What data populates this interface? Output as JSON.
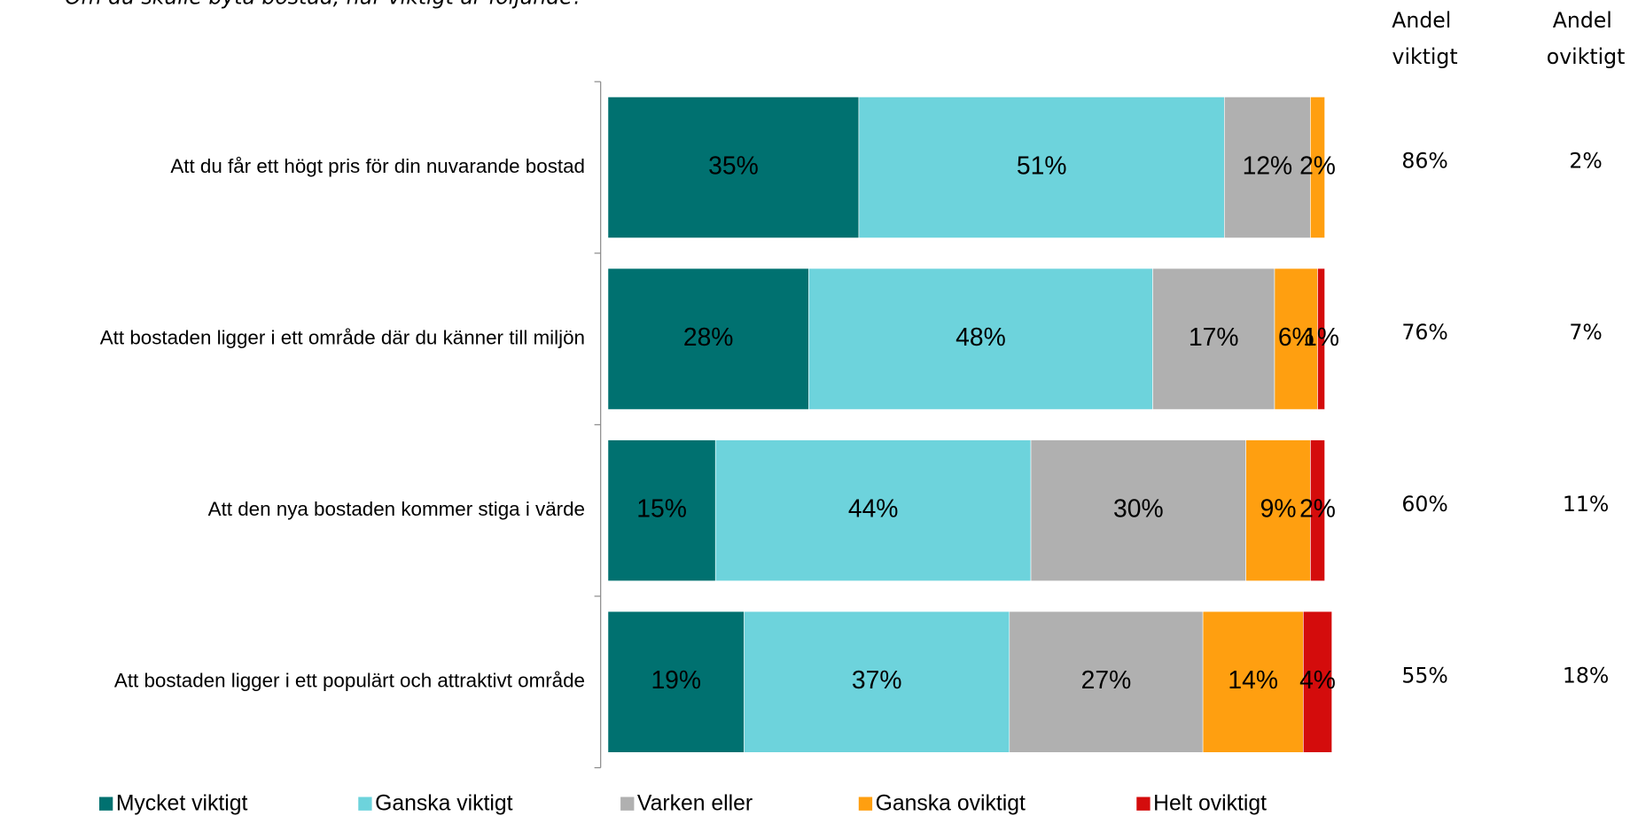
{
  "chart_data": {
    "type": "bar",
    "orientation": "horizontal",
    "stacked": true,
    "title": "Om du skulle byta bostad, hur viktigt är följande?",
    "categories": [
      "Att du får ett högt pris för din nuvarande bostad",
      "Att bostaden ligger i ett område där du känner till miljön",
      "Att den nya bostaden kommer stiga i värde",
      "Att bostaden ligger i ett populärt och attraktivt område"
    ],
    "series": [
      {
        "name": "Mycket viktigt",
        "color": "#007170",
        "values": [
          35,
          28,
          15,
          19
        ],
        "value_labels": [
          "35%",
          "28%",
          "15%",
          "19%"
        ]
      },
      {
        "name": "Ganska viktigt",
        "color": "#6dd3dc",
        "values": [
          51,
          48,
          44,
          37
        ],
        "value_labels": [
          "51%",
          "48%",
          "44%",
          "37%"
        ]
      },
      {
        "name": "Varken eller",
        "color": "#b0b0b0",
        "values": [
          12,
          17,
          30,
          27
        ],
        "value_labels": [
          "12%",
          "17%",
          "30%",
          "27%"
        ]
      },
      {
        "name": "Ganska oviktigt",
        "color": "#ff9f10",
        "values": [
          2,
          6,
          9,
          14
        ],
        "value_labels": [
          "2%",
          "6%",
          "9%",
          "14%"
        ]
      },
      {
        "name": "Helt oviktigt",
        "color": "#d40c0c",
        "values": [
          null,
          1,
          2,
          4
        ],
        "value_labels": [
          null,
          "1%",
          "2%",
          "4%"
        ]
      }
    ],
    "columns": [
      {
        "name": "Andel viktigt",
        "values": [
          86,
          76,
          60,
          55
        ],
        "value_labels": [
          "86%",
          "76%",
          "60%",
          "55%"
        ]
      },
      {
        "name": "Andel oviktigt",
        "values": [
          2,
          7,
          11,
          18
        ],
        "value_labels": [
          "2%",
          "7%",
          "11%",
          "18%"
        ]
      }
    ]
  }
}
